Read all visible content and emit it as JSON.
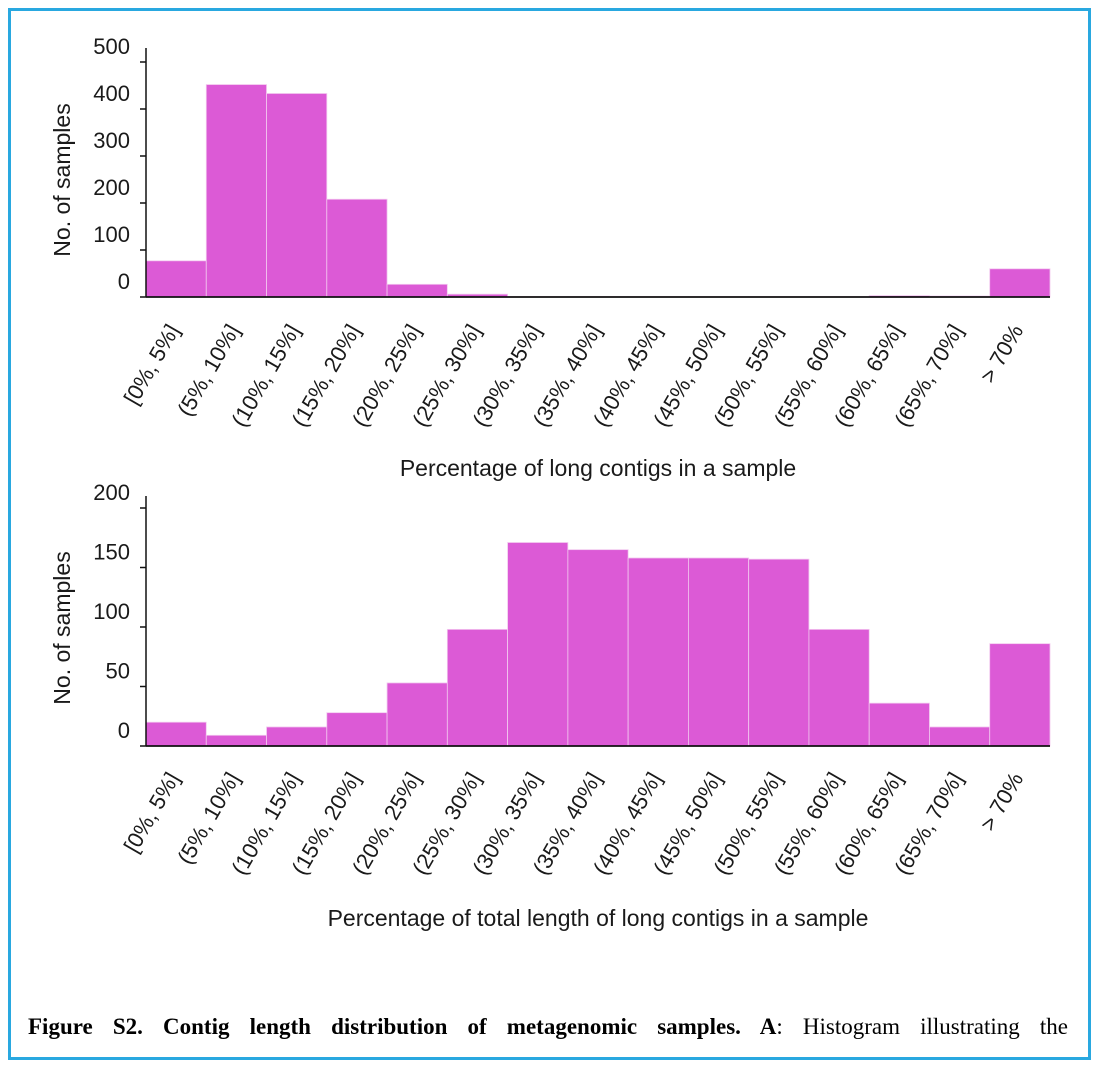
{
  "colors": {
    "bar": "#dc5ad6",
    "axis": "#111111",
    "frame": "#29a8e0"
  },
  "chart_data": [
    {
      "type": "bar",
      "title": "",
      "xlabel": "Percentage of long contigs in a sample",
      "ylabel": "No. of samples",
      "ylim": [
        0,
        500
      ],
      "yticks": [
        0,
        100,
        200,
        300,
        400,
        500
      ],
      "grid": false,
      "categories": [
        "[0%, 5%]",
        "(5%, 10%]",
        "(10%, 15%]",
        "(15%, 20%]",
        "(20%, 25%]",
        "(25%, 30%]",
        "(30%, 35%]",
        "(35%, 40%]",
        "(40%, 45%]",
        "(45%, 50%]",
        "(50%, 55%]",
        "(55%, 60%]",
        "(60%, 65%]",
        "(65%, 70%]",
        "> 70%"
      ],
      "values": [
        77,
        452,
        433,
        208,
        27,
        6,
        1,
        1,
        1,
        1,
        1,
        1,
        3,
        2,
        60
      ]
    },
    {
      "type": "bar",
      "title": "",
      "xlabel": "Percentage of total length of long contigs in a sample",
      "ylabel": "No. of samples",
      "ylim": [
        0,
        200
      ],
      "yticks": [
        0,
        50,
        100,
        150,
        200
      ],
      "grid": false,
      "categories": [
        "[0%, 5%]",
        "(5%, 10%]",
        "(10%, 15%]",
        "(15%, 20%]",
        "(20%, 25%]",
        "(25%, 30%]",
        "(30%, 35%]",
        "(35%, 40%]",
        "(40%, 45%]",
        "(45%, 50%]",
        "(50%, 55%]",
        "(55%, 60%]",
        "(60%, 65%]",
        "(65%, 70%]",
        "> 70%"
      ],
      "values": [
        20,
        9,
        16,
        28,
        53,
        98,
        171,
        165,
        158,
        158,
        157,
        98,
        36,
        16,
        86
      ]
    }
  ],
  "caption": {
    "bold": "Figure S2. Contig length distribution of metagenomic samples. A",
    "rest": ": Histogram illustrating the"
  }
}
